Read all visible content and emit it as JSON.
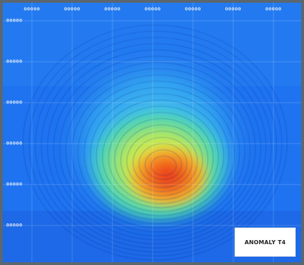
{
  "map": {
    "label": "ANOMALY T4",
    "x_ticks": [
      "00000",
      "00000",
      "00000",
      "00000",
      "00000",
      "00000",
      "00000"
    ],
    "y_ticks": [
      "00000",
      "00000",
      "00000",
      "00000",
      "00000",
      "00000"
    ],
    "colors": {
      "background": "#1f73f0",
      "frame": "#5b6770",
      "contour_line": "#0a2a8a",
      "grid_line": "#ffffff",
      "ramp": [
        "#1f73f0",
        "#28c6f0",
        "#7ce0c8",
        "#f2ea40",
        "#f29a24",
        "#e8321a"
      ]
    }
  }
}
